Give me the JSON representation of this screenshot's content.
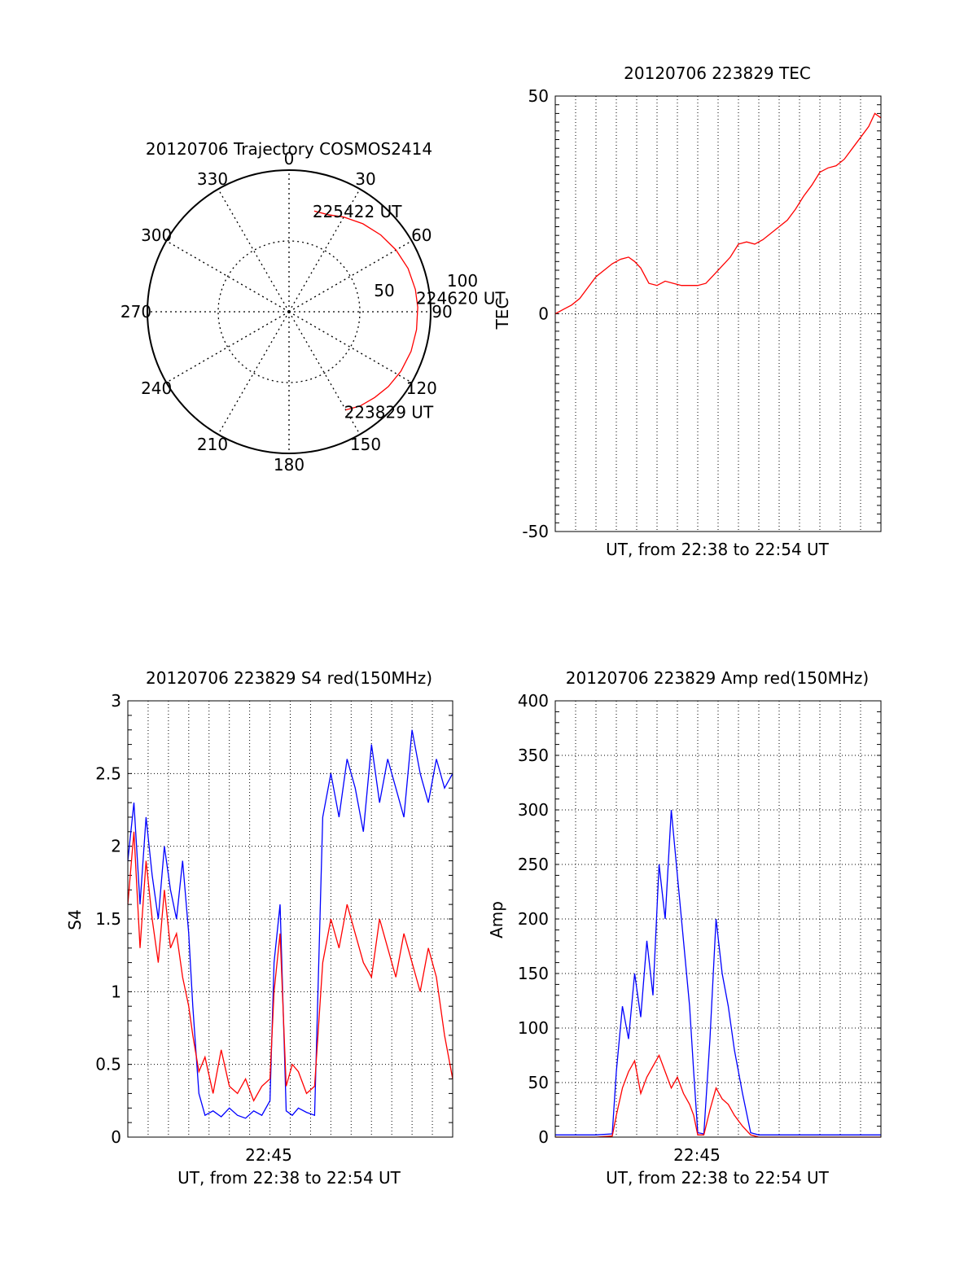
{
  "chart_data": [
    {
      "type": "polar",
      "title": "20120706 Trajectory COSMOS2414",
      "angle_labels": [
        "0",
        "30",
        "60",
        "90",
        "120",
        "150",
        "180",
        "210",
        "240",
        "270",
        "300",
        "330"
      ],
      "radial_labels": [
        "50",
        "100"
      ],
      "rlim": [
        0,
        100
      ],
      "grid": true,
      "series": [
        {
          "color": "#ff0000",
          "points": [
            {
              "az": 150,
              "el": 18
            },
            {
              "az": 143,
              "el": 15
            },
            {
              "az": 135,
              "el": 13
            },
            {
              "az": 127,
              "el": 11
            },
            {
              "az": 118,
              "el": 9.5
            },
            {
              "az": 108,
              "el": 8.5
            },
            {
              "az": 98,
              "el": 8.2
            },
            {
              "az": 88,
              "el": 8.2
            },
            {
              "az": 80,
              "el": 8.5
            },
            {
              "az": 70,
              "el": 9.5
            },
            {
              "az": 60,
              "el": 11.5
            },
            {
              "az": 50,
              "el": 14
            },
            {
              "az": 40,
              "el": 17
            },
            {
              "az": 30,
              "el": 20.5
            },
            {
              "az": 22,
              "el": 23.5
            },
            {
              "az": 14,
              "el": 24
            }
          ]
        }
      ],
      "annotations": [
        {
          "text": "225422 UT",
          "az": 14,
          "el": 24
        },
        {
          "text": "224620 UT",
          "az": 88,
          "el": 8.2
        },
        {
          "text": "223829 UT",
          "az": 150,
          "el": 18
        }
      ]
    },
    {
      "type": "line",
      "title": "20120706 223829 TEC",
      "xlabel": "UT, from 22:38 to 22:54 UT",
      "ylabel": "TEC",
      "ylim": [
        -50,
        50
      ],
      "yticks": [
        "-50",
        "0",
        "50"
      ],
      "xlim_minutes": [
        0,
        16
      ],
      "grid": "dotted-vertical",
      "series": [
        {
          "color": "#ff0000",
          "x_minutes": [
            0,
            0.4,
            0.8,
            1.2,
            1.6,
            2.0,
            2.4,
            2.8,
            3.2,
            3.6,
            3.9,
            4.2,
            4.6,
            5.0,
            5.4,
            5.8,
            6.2,
            6.6,
            7.0,
            7.4,
            7.8,
            8.2,
            8.6,
            9.0,
            9.4,
            9.8,
            10.2,
            10.6,
            11.0,
            11.4,
            11.8,
            12.2,
            12.6,
            13.0,
            13.4,
            13.8,
            14.2,
            14.6,
            15.0,
            15.4,
            15.7,
            16.0
          ],
          "values": [
            0,
            1,
            2,
            3.5,
            6,
            8.5,
            10,
            11.5,
            12.5,
            13,
            12,
            10.5,
            7,
            6.5,
            7.5,
            7,
            6.5,
            6.5,
            6.5,
            7,
            9,
            11,
            13,
            16,
            16.5,
            16,
            17,
            18.5,
            20,
            21.5,
            24,
            27,
            29.5,
            32.5,
            33.5,
            34,
            35.5,
            38,
            40.5,
            43,
            46,
            45
          ]
        }
      ]
    },
    {
      "type": "line",
      "title": "20120706 223829 S4 red(150MHz)",
      "xlabel": "UT, from 22:38 to 22:54 UT",
      "ylabel": "S4",
      "xtick_labels": [
        "22:45"
      ],
      "ylim": [
        0,
        3
      ],
      "yticks": [
        "0",
        "0.5",
        "1",
        "1.5",
        "2",
        "2.5",
        "3"
      ],
      "xlim_minutes": [
        0,
        16
      ],
      "grid": true,
      "series": [
        {
          "color": "#0000ff",
          "x_minutes": [
            0,
            0.3,
            0.6,
            0.9,
            1.2,
            1.5,
            1.8,
            2.1,
            2.4,
            2.7,
            3.0,
            3.2,
            3.5,
            3.8,
            4.2,
            4.6,
            5.0,
            5.4,
            5.8,
            6.2,
            6.6,
            7.0,
            7.2,
            7.5,
            7.8,
            8.1,
            8.4,
            8.8,
            9.2,
            9.6,
            10.0,
            10.4,
            10.8,
            11.2,
            11.6,
            12.0,
            12.4,
            12.8,
            13.2,
            13.6,
            14.0,
            14.4,
            14.8,
            15.2,
            15.6,
            16.0
          ],
          "values": [
            1.9,
            2.3,
            1.6,
            2.2,
            1.8,
            1.5,
            2.0,
            1.7,
            1.5,
            1.9,
            1.4,
            0.9,
            0.3,
            0.15,
            0.18,
            0.14,
            0.2,
            0.15,
            0.13,
            0.18,
            0.15,
            0.25,
            1.2,
            1.6,
            0.18,
            0.15,
            0.2,
            0.17,
            0.15,
            2.2,
            2.5,
            2.2,
            2.6,
            2.4,
            2.1,
            2.7,
            2.3,
            2.6,
            2.4,
            2.2,
            2.8,
            2.5,
            2.3,
            2.6,
            2.4,
            2.5
          ]
        },
        {
          "color": "#ff0000",
          "x_minutes": [
            0,
            0.3,
            0.6,
            0.9,
            1.2,
            1.5,
            1.8,
            2.1,
            2.4,
            2.7,
            3.0,
            3.2,
            3.5,
            3.8,
            4.2,
            4.6,
            5.0,
            5.4,
            5.8,
            6.2,
            6.6,
            7.0,
            7.2,
            7.5,
            7.8,
            8.1,
            8.4,
            8.8,
            9.2,
            9.6,
            10.0,
            10.4,
            10.8,
            11.2,
            11.6,
            12.0,
            12.4,
            12.8,
            13.2,
            13.6,
            14.0,
            14.4,
            14.8,
            15.2,
            15.6,
            16.0
          ],
          "values": [
            1.6,
            2.1,
            1.3,
            1.9,
            1.5,
            1.2,
            1.7,
            1.3,
            1.4,
            1.1,
            0.9,
            0.7,
            0.45,
            0.55,
            0.3,
            0.6,
            0.35,
            0.3,
            0.4,
            0.25,
            0.35,
            0.4,
            1.0,
            1.4,
            0.35,
            0.5,
            0.45,
            0.3,
            0.35,
            1.2,
            1.5,
            1.3,
            1.6,
            1.4,
            1.2,
            1.1,
            1.5,
            1.3,
            1.1,
            1.4,
            1.2,
            1.0,
            1.3,
            1.1,
            0.7,
            0.4
          ]
        }
      ]
    },
    {
      "type": "line",
      "title": "20120706 223829 Amp red(150MHz)",
      "xlabel": "UT, from 22:38 to 22:54 UT",
      "ylabel": "Amp",
      "xtick_labels": [
        "22:45"
      ],
      "ylim": [
        0,
        400
      ],
      "yticks": [
        "0",
        "50",
        "100",
        "150",
        "200",
        "250",
        "300",
        "350",
        "400"
      ],
      "xlim_minutes": [
        0,
        16
      ],
      "grid": true,
      "series": [
        {
          "color": "#0000ff",
          "x_minutes": [
            0,
            1.0,
            2.0,
            2.8,
            3.0,
            3.3,
            3.6,
            3.9,
            4.2,
            4.5,
            4.8,
            5.1,
            5.4,
            5.7,
            6.0,
            6.3,
            6.6,
            6.8,
            7.0,
            7.3,
            7.6,
            7.9,
            8.2,
            8.5,
            8.8,
            9.2,
            9.6,
            10.0,
            11.0,
            12.0,
            13.0,
            14.0,
            15.0,
            16.0
          ],
          "values": [
            2,
            2,
            2,
            3,
            60,
            120,
            90,
            150,
            110,
            180,
            130,
            250,
            200,
            300,
            240,
            180,
            120,
            60,
            4,
            3,
            90,
            200,
            150,
            120,
            80,
            40,
            4,
            2,
            2,
            2,
            2,
            2,
            2,
            2
          ]
        },
        {
          "color": "#ff0000",
          "x_minutes": [
            0,
            1.0,
            2.0,
            2.8,
            3.0,
            3.3,
            3.6,
            3.9,
            4.2,
            4.5,
            4.8,
            5.1,
            5.4,
            5.7,
            6.0,
            6.3,
            6.6,
            6.8,
            7.0,
            7.3,
            7.6,
            7.9,
            8.2,
            8.5,
            8.8,
            9.2,
            9.6,
            10.0,
            11.0,
            12.0,
            13.0,
            14.0,
            15.0,
            16.0
          ],
          "values": [
            0,
            0,
            0,
            1,
            20,
            45,
            60,
            70,
            40,
            55,
            65,
            75,
            60,
            45,
            55,
            40,
            30,
            20,
            2,
            2,
            25,
            45,
            35,
            30,
            20,
            10,
            2,
            0,
            0,
            0,
            0,
            0,
            0,
            0
          ]
        }
      ]
    }
  ]
}
